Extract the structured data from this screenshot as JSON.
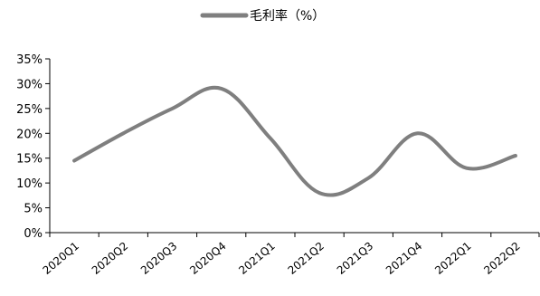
{
  "chart_data": {
    "type": "line",
    "title": "",
    "xlabel": "",
    "ylabel": "",
    "categories": [
      "2020Q1",
      "2020Q2",
      "2020Q3",
      "2020Q4",
      "2021Q1",
      "2021Q2",
      "2021Q3",
      "2021Q4",
      "2022Q1",
      "2022Q2"
    ],
    "series": [
      {
        "name": "毛利率（%）",
        "values": [
          14.5,
          20,
          25,
          29,
          19,
          8,
          11,
          20,
          13,
          15.5
        ],
        "color": "#7f7f7f"
      }
    ],
    "ylim": [
      0,
      35
    ],
    "yticks": [
      "0%",
      "5%",
      "10%",
      "15%",
      "20%",
      "25%",
      "30%",
      "35%"
    ],
    "grid": false,
    "legend_position": "top-center"
  }
}
